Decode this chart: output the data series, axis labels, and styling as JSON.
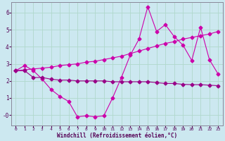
{
  "xlabel": "Windchill (Refroidissement éolien,°C)",
  "background_color": "#cce8f0",
  "grid_color": "#b0d8cc",
  "line_color": "#cc00aa",
  "line_color2": "#990088",
  "ylim": [
    -0.6,
    6.6
  ],
  "xlim": [
    -0.5,
    23.5
  ],
  "yticks": [
    6,
    5,
    4,
    3,
    2,
    1,
    0
  ],
  "ytick_labels": [
    "6",
    "5",
    "4",
    "3",
    "2",
    "1",
    "-0"
  ],
  "x_ticks": [
    0,
    1,
    2,
    3,
    4,
    5,
    6,
    7,
    8,
    9,
    10,
    11,
    12,
    13,
    14,
    15,
    16,
    17,
    18,
    19,
    20,
    21,
    22,
    23
  ],
  "line1_x": [
    0,
    1,
    2,
    3,
    4,
    5,
    6,
    7,
    8,
    9,
    10,
    11,
    12,
    13,
    14,
    15,
    16,
    17,
    18,
    19,
    20,
    21,
    22,
    23
  ],
  "line1_y": [
    2.6,
    2.9,
    2.6,
    2.1,
    1.5,
    1.1,
    0.8,
    -0.1,
    -0.05,
    -0.1,
    -0.05,
    1.0,
    2.2,
    3.5,
    4.45,
    6.35,
    4.9,
    5.3,
    4.6,
    4.1,
    3.2,
    5.15,
    3.25,
    2.4
  ],
  "line2_x": [
    0,
    1,
    2,
    3,
    4,
    5,
    6,
    7,
    8,
    9,
    10,
    11,
    12,
    13,
    14,
    15,
    16,
    17,
    18,
    19,
    20,
    21,
    22,
    23
  ],
  "line2_y": [
    2.6,
    2.65,
    2.7,
    2.75,
    2.8,
    2.9,
    2.95,
    3.0,
    3.1,
    3.15,
    3.25,
    3.35,
    3.45,
    3.6,
    3.75,
    3.9,
    4.05,
    4.2,
    4.3,
    4.45,
    4.55,
    4.65,
    4.75,
    4.9
  ],
  "line3_x": [
    0,
    1,
    2,
    3,
    4,
    5,
    6,
    7,
    8,
    9,
    10,
    11,
    12,
    13,
    14,
    15,
    16,
    17,
    18,
    19,
    20,
    21,
    22,
    23
  ],
  "line3_y": [
    2.6,
    2.6,
    2.2,
    2.2,
    2.1,
    2.05,
    2.05,
    2.0,
    2.0,
    2.0,
    2.0,
    1.95,
    1.95,
    1.95,
    1.95,
    1.95,
    1.9,
    1.85,
    1.85,
    1.8,
    1.78,
    1.78,
    1.75,
    1.72
  ]
}
